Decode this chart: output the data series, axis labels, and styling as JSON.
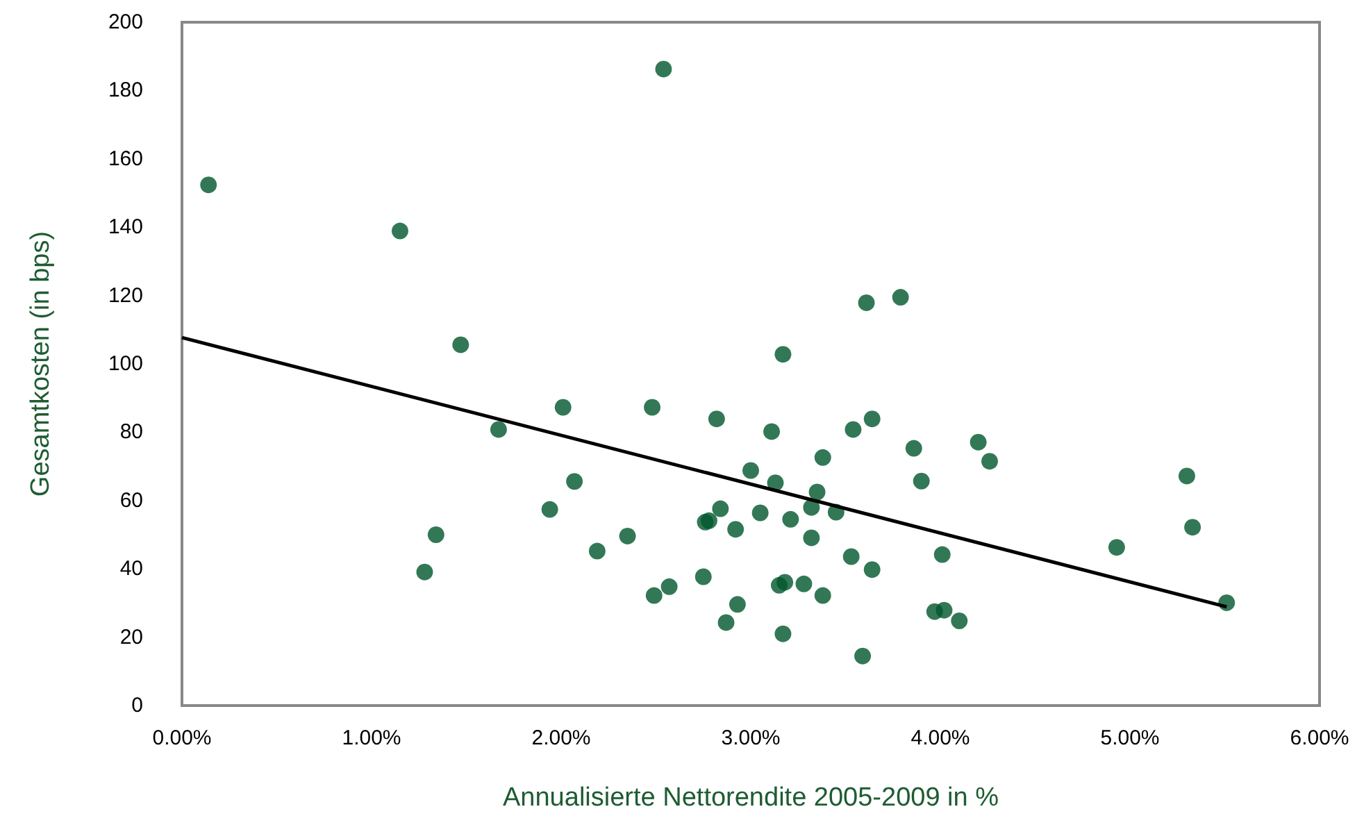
{
  "chart_data": {
    "type": "scatter",
    "xlabel": "Annualisierte Nettorendite 2005-2009 in %",
    "ylabel": "Gesamtkosten (in bps)",
    "xlim": [
      0,
      6
    ],
    "ylim": [
      0,
      200
    ],
    "xticks": [
      {
        "value": 0,
        "label": "0.00%"
      },
      {
        "value": 1,
        "label": "1.00%"
      },
      {
        "value": 2,
        "label": "2.00%"
      },
      {
        "value": 3,
        "label": "3.00%"
      },
      {
        "value": 4,
        "label": "4.00%"
      },
      {
        "value": 5,
        "label": "5.00%"
      },
      {
        "value": 6,
        "label": "6.00%"
      }
    ],
    "yticks": [
      0,
      20,
      40,
      60,
      80,
      100,
      120,
      140,
      160,
      180,
      200
    ],
    "grid": false,
    "marker": "circle",
    "series": [
      {
        "color": "#00562c",
        "x": [
          0.14,
          1.15,
          2.54,
          1.47,
          2.01,
          2.48,
          1.67,
          2.07,
          1.94,
          1.34,
          1.28,
          2.35,
          2.19,
          2.49,
          2.57,
          3.61,
          3.79,
          3.17,
          2.82,
          3.11,
          3.54,
          3.64,
          3.86,
          4.2,
          4.26,
          3.38,
          3.0,
          3.13,
          3.35,
          3.9,
          5.3,
          2.84,
          3.32,
          3.45,
          3.05,
          2.76,
          2.78,
          2.92,
          3.21,
          3.32,
          5.33,
          4.93,
          4.01,
          3.53,
          3.64,
          2.75,
          3.15,
          3.18,
          3.28,
          3.38,
          2.93,
          2.87,
          3.17,
          3.59,
          3.97,
          4.02,
          4.1,
          5.51
        ],
        "values": [
          152.4,
          138.9,
          186.3,
          105.6,
          87.3,
          87.3,
          80.8,
          65.6,
          57.4,
          50.0,
          39.1,
          49.6,
          45.2,
          32.2,
          34.8,
          117.9,
          119.5,
          102.8,
          83.9,
          80.2,
          80.8,
          83.9,
          75.3,
          77.1,
          71.5,
          72.6,
          68.8,
          65.2,
          62.5,
          65.7,
          67.2,
          57.6,
          58.0,
          56.6,
          56.4,
          53.7,
          54.1,
          51.6,
          54.5,
          49.1,
          52.2,
          46.3,
          44.2,
          43.6,
          39.8,
          37.7,
          35.2,
          36.1,
          35.6,
          32.2,
          29.6,
          24.3,
          21.0,
          14.5,
          27.5,
          27.9,
          24.8,
          30.1
        ]
      },
      {
        "type": "line",
        "color": "#000000",
        "line_style": "solid",
        "marker": "none",
        "x": [
          0,
          5.51
        ],
        "values": [
          107.7,
          28.9
        ]
      }
    ]
  }
}
